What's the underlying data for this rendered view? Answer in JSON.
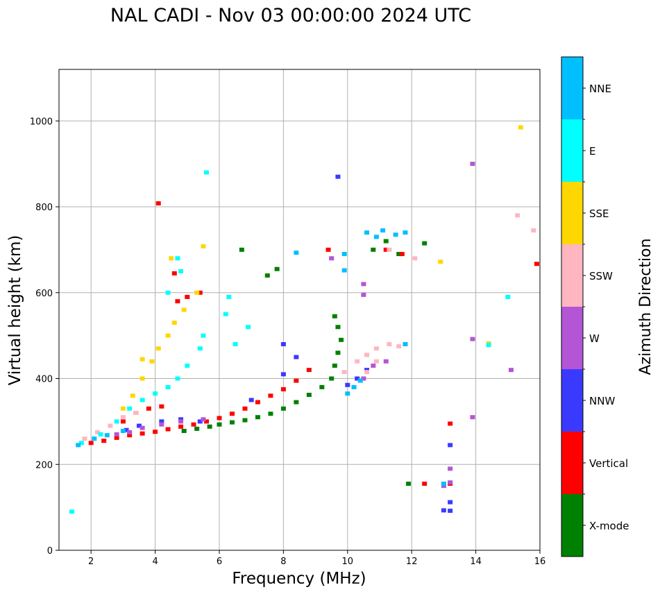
{
  "chart_data": {
    "type": "scatter",
    "title": "NAL CADI - Nov 03 00:00:00 2024 UTC",
    "xlabel": "Frequency (MHz)",
    "ylabel": "Virtual height (km)",
    "xlim": [
      1,
      16
    ],
    "ylim": [
      0,
      1120
    ],
    "x_ticks": [
      2,
      4,
      6,
      8,
      10,
      12,
      14,
      16
    ],
    "y_ticks": [
      0,
      200,
      400,
      600,
      800,
      1000
    ],
    "grid": true,
    "colorbar": {
      "label": "Azimuth Direction",
      "categories": [
        {
          "name": "X-mode",
          "color": "#008000"
        },
        {
          "name": "Vertical",
          "color": "#ff0000"
        },
        {
          "name": "NNW",
          "color": "#3a3aff"
        },
        {
          "name": "W",
          "color": "#b455d6"
        },
        {
          "name": "SSW",
          "color": "#ffb6c1"
        },
        {
          "name": "SSE",
          "color": "#ffd700"
        },
        {
          "name": "E",
          "color": "#00ffff"
        },
        {
          "name": "NNE",
          "color": "#00bfff"
        }
      ]
    },
    "series": [
      {
        "name": "X-mode",
        "points": [
          [
            4.9,
            278
          ],
          [
            5.3,
            283
          ],
          [
            5.7,
            288
          ],
          [
            6.0,
            293
          ],
          [
            6.4,
            298
          ],
          [
            6.8,
            303
          ],
          [
            7.2,
            310
          ],
          [
            7.6,
            318
          ],
          [
            8.0,
            330
          ],
          [
            8.4,
            345
          ],
          [
            8.8,
            362
          ],
          [
            9.2,
            380
          ],
          [
            9.5,
            400
          ],
          [
            9.6,
            430
          ],
          [
            9.7,
            460
          ],
          [
            9.8,
            490
          ],
          [
            9.7,
            520
          ],
          [
            9.6,
            545
          ],
          [
            6.7,
            700
          ],
          [
            7.8,
            655
          ],
          [
            7.5,
            640
          ],
          [
            10.8,
            700
          ],
          [
            11.2,
            720
          ],
          [
            11.6,
            690
          ],
          [
            12.4,
            715
          ],
          [
            11.9,
            155
          ]
        ]
      },
      {
        "name": "Vertical",
        "points": [
          [
            2.0,
            250
          ],
          [
            2.4,
            255
          ],
          [
            2.8,
            262
          ],
          [
            3.2,
            268
          ],
          [
            3.6,
            272
          ],
          [
            4.0,
            276
          ],
          [
            4.4,
            282
          ],
          [
            4.8,
            288
          ],
          [
            5.2,
            293
          ],
          [
            5.6,
            300
          ],
          [
            6.0,
            308
          ],
          [
            6.4,
            318
          ],
          [
            6.8,
            330
          ],
          [
            7.2,
            345
          ],
          [
            7.6,
            360
          ],
          [
            8.0,
            375
          ],
          [
            8.4,
            395
          ],
          [
            8.8,
            420
          ],
          [
            3.0,
            300
          ],
          [
            3.4,
            320
          ],
          [
            3.8,
            330
          ],
          [
            4.2,
            335
          ],
          [
            4.7,
            580
          ],
          [
            5.0,
            590
          ],
          [
            5.4,
            600
          ],
          [
            4.1,
            808
          ],
          [
            4.6,
            645
          ],
          [
            12.4,
            155
          ],
          [
            13.2,
            155
          ],
          [
            13.2,
            295
          ],
          [
            15.9,
            667
          ],
          [
            11.2,
            700
          ],
          [
            11.7,
            690
          ],
          [
            9.4,
            700
          ]
        ]
      },
      {
        "name": "NNW",
        "points": [
          [
            3.1,
            280
          ],
          [
            3.5,
            290
          ],
          [
            4.2,
            300
          ],
          [
            4.8,
            305
          ],
          [
            5.4,
            300
          ],
          [
            7.0,
            350
          ],
          [
            8.0,
            480
          ],
          [
            8.4,
            450
          ],
          [
            10.0,
            385
          ],
          [
            10.3,
            400
          ],
          [
            10.6,
            420
          ],
          [
            13.2,
            245
          ],
          [
            13.2,
            112
          ],
          [
            13.2,
            92
          ],
          [
            13.0,
            93
          ],
          [
            9.7,
            870
          ],
          [
            8.0,
            410
          ]
        ]
      },
      {
        "name": "W",
        "points": [
          [
            2.8,
            270
          ],
          [
            3.2,
            275
          ],
          [
            3.6,
            285
          ],
          [
            4.2,
            293
          ],
          [
            4.8,
            300
          ],
          [
            5.5,
            305
          ],
          [
            10.5,
            400
          ],
          [
            10.8,
            430
          ],
          [
            11.2,
            440
          ],
          [
            10.5,
            620
          ],
          [
            10.5,
            595
          ],
          [
            9.5,
            680
          ],
          [
            13.2,
            190
          ],
          [
            13.2,
            158
          ],
          [
            13.0,
            150
          ],
          [
            13.9,
            900
          ],
          [
            13.9,
            492
          ],
          [
            13.9,
            310
          ],
          [
            15.1,
            420
          ]
        ]
      },
      {
        "name": "SSW",
        "points": [
          [
            1.8,
            260
          ],
          [
            2.2,
            275
          ],
          [
            2.6,
            290
          ],
          [
            3.0,
            310
          ],
          [
            3.4,
            320
          ],
          [
            10.3,
            440
          ],
          [
            10.6,
            455
          ],
          [
            10.9,
            470
          ],
          [
            11.3,
            480
          ],
          [
            11.6,
            475
          ],
          [
            10.9,
            440
          ],
          [
            10.6,
            415
          ],
          [
            11.3,
            700
          ],
          [
            15.3,
            780
          ],
          [
            15.8,
            745
          ],
          [
            12.1,
            680
          ],
          [
            9.9,
            415
          ]
        ]
      },
      {
        "name": "SSE",
        "points": [
          [
            3.0,
            330
          ],
          [
            3.3,
            360
          ],
          [
            3.6,
            400
          ],
          [
            3.9,
            440
          ],
          [
            4.1,
            470
          ],
          [
            4.4,
            500
          ],
          [
            4.6,
            530
          ],
          [
            4.9,
            560
          ],
          [
            5.3,
            600
          ],
          [
            5.5,
            708
          ],
          [
            4.5,
            680
          ],
          [
            3.6,
            445
          ],
          [
            15.4,
            985
          ],
          [
            12.9,
            672
          ],
          [
            14.4,
            482
          ]
        ]
      },
      {
        "name": "E",
        "points": [
          [
            1.7,
            250
          ],
          [
            2.3,
            270
          ],
          [
            2.8,
            300
          ],
          [
            3.2,
            330
          ],
          [
            3.6,
            350
          ],
          [
            4.0,
            365
          ],
          [
            4.4,
            380
          ],
          [
            4.7,
            400
          ],
          [
            5.0,
            430
          ],
          [
            5.4,
            470
          ],
          [
            4.4,
            600
          ],
          [
            4.8,
            650
          ],
          [
            5.5,
            500
          ],
          [
            6.2,
            550
          ],
          [
            6.3,
            590
          ],
          [
            6.5,
            480
          ],
          [
            6.9,
            520
          ],
          [
            5.6,
            880
          ],
          [
            4.7,
            680
          ],
          [
            1.4,
            90
          ],
          [
            14.4,
            478
          ],
          [
            15.0,
            590
          ]
        ]
      },
      {
        "name": "NNE",
        "points": [
          [
            1.6,
            245
          ],
          [
            2.1,
            260
          ],
          [
            2.5,
            268
          ],
          [
            3.0,
            278
          ],
          [
            10.0,
            365
          ],
          [
            10.2,
            380
          ],
          [
            10.4,
            395
          ],
          [
            10.6,
            740
          ],
          [
            10.9,
            730
          ],
          [
            11.1,
            745
          ],
          [
            11.5,
            735
          ],
          [
            11.8,
            740
          ],
          [
            13.0,
            155
          ],
          [
            8.4,
            693
          ],
          [
            9.9,
            690
          ],
          [
            9.9,
            652
          ],
          [
            11.8,
            480
          ]
        ]
      }
    ]
  }
}
